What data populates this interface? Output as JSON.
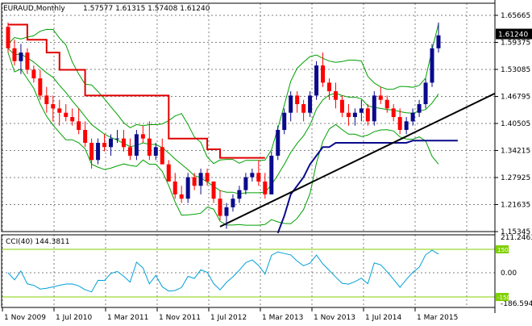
{
  "header": {
    "symbol_text": "EURAUD,Monthly",
    "ohlc_text": "1.57577 1.61315 1.57408 1.61240"
  },
  "price_panel": {
    "price_ticks": [
      "1.65665",
      "1.59375",
      "1.53085",
      "1.46795",
      "1.40505",
      "1.34215",
      "1.27925",
      "1.21635",
      "1.15345"
    ],
    "current_price_label": "1.61240",
    "colors": {
      "up": "#0a0a8c",
      "down": "#ff0000",
      "bands": "#00a000",
      "stop_red": "#e00000",
      "stop_blue": "#0a0a8c",
      "trendline": "#000000"
    }
  },
  "cci_panel": {
    "label": "CCI(40) 144.3811",
    "ticks": [
      "211.2463",
      "0.00",
      "-186.5947"
    ],
    "level_labels": [
      "150",
      "-150"
    ],
    "colors": {
      "line": "#00a0d8",
      "levels": "#80d000"
    }
  },
  "time_axis": {
    "labels": [
      "1 Nov 2009",
      "1 Jul 2010",
      "1 Mar 2011",
      "1 Nov 2011",
      "1 Jul 2012",
      "1 Mar 2013",
      "1 Nov 2013",
      "1 Jul 2014",
      "1 Mar 2015"
    ]
  },
  "chart_data": {
    "type": "candlestick",
    "instrument": "EURAUD",
    "timeframe": "Monthly",
    "period": [
      "2009-09",
      "2015-07"
    ],
    "y_range": [
      1.15345,
      1.65665
    ],
    "candles": [
      [
        1.63,
        1.64,
        1.57,
        1.58
      ],
      [
        1.58,
        1.6,
        1.54,
        1.55
      ],
      [
        1.55,
        1.59,
        1.52,
        1.57
      ],
      [
        1.57,
        1.58,
        1.52,
        1.53
      ],
      [
        1.53,
        1.54,
        1.5,
        1.51
      ],
      [
        1.51,
        1.53,
        1.46,
        1.47
      ],
      [
        1.47,
        1.49,
        1.43,
        1.45
      ],
      [
        1.45,
        1.47,
        1.41,
        1.44
      ],
      [
        1.44,
        1.46,
        1.4,
        1.43
      ],
      [
        1.43,
        1.45,
        1.41,
        1.42
      ],
      [
        1.42,
        1.44,
        1.4,
        1.41
      ],
      [
        1.41,
        1.44,
        1.38,
        1.39
      ],
      [
        1.39,
        1.41,
        1.35,
        1.36
      ],
      [
        1.36,
        1.37,
        1.3,
        1.32
      ],
      [
        1.32,
        1.37,
        1.31,
        1.36
      ],
      [
        1.36,
        1.38,
        1.34,
        1.35
      ],
      [
        1.35,
        1.38,
        1.33,
        1.37
      ],
      [
        1.37,
        1.39,
        1.36,
        1.37
      ],
      [
        1.37,
        1.39,
        1.34,
        1.35
      ],
      [
        1.35,
        1.37,
        1.32,
        1.33
      ],
      [
        1.33,
        1.39,
        1.32,
        1.38
      ],
      [
        1.38,
        1.4,
        1.36,
        1.37
      ],
      [
        1.37,
        1.41,
        1.32,
        1.33
      ],
      [
        1.33,
        1.36,
        1.32,
        1.35
      ],
      [
        1.35,
        1.37,
        1.31,
        1.31
      ],
      [
        1.31,
        1.32,
        1.27,
        1.27
      ],
      [
        1.27,
        1.29,
        1.23,
        1.24
      ],
      [
        1.24,
        1.26,
        1.22,
        1.23
      ],
      [
        1.23,
        1.29,
        1.22,
        1.28
      ],
      [
        1.28,
        1.29,
        1.25,
        1.26
      ],
      [
        1.26,
        1.3,
        1.24,
        1.29
      ],
      [
        1.29,
        1.3,
        1.26,
        1.27
      ],
      [
        1.27,
        1.27,
        1.22,
        1.23
      ],
      [
        1.23,
        1.25,
        1.18,
        1.19
      ],
      [
        1.19,
        1.22,
        1.16,
        1.21
      ],
      [
        1.21,
        1.24,
        1.2,
        1.23
      ],
      [
        1.23,
        1.26,
        1.22,
        1.25
      ],
      [
        1.25,
        1.29,
        1.24,
        1.28
      ],
      [
        1.28,
        1.3,
        1.27,
        1.29
      ],
      [
        1.29,
        1.32,
        1.26,
        1.27
      ],
      [
        1.27,
        1.29,
        1.23,
        1.24
      ],
      [
        1.24,
        1.34,
        1.24,
        1.33
      ],
      [
        1.33,
        1.4,
        1.32,
        1.39
      ],
      [
        1.39,
        1.44,
        1.38,
        1.43
      ],
      [
        1.43,
        1.48,
        1.41,
        1.47
      ],
      [
        1.47,
        1.48,
        1.43,
        1.45
      ],
      [
        1.45,
        1.46,
        1.41,
        1.43
      ],
      [
        1.43,
        1.48,
        1.42,
        1.47
      ],
      [
        1.47,
        1.55,
        1.46,
        1.54
      ],
      [
        1.54,
        1.57,
        1.49,
        1.5
      ],
      [
        1.5,
        1.51,
        1.46,
        1.48
      ],
      [
        1.48,
        1.5,
        1.44,
        1.46
      ],
      [
        1.46,
        1.47,
        1.42,
        1.43
      ],
      [
        1.43,
        1.45,
        1.4,
        1.42
      ],
      [
        1.42,
        1.44,
        1.4,
        1.43
      ],
      [
        1.43,
        1.46,
        1.41,
        1.44
      ],
      [
        1.44,
        1.45,
        1.4,
        1.41
      ],
      [
        1.41,
        1.48,
        1.4,
        1.47
      ],
      [
        1.47,
        1.49,
        1.45,
        1.46
      ],
      [
        1.46,
        1.47,
        1.43,
        1.44
      ],
      [
        1.44,
        1.45,
        1.41,
        1.42
      ],
      [
        1.42,
        1.44,
        1.38,
        1.39
      ],
      [
        1.39,
        1.42,
        1.38,
        1.41
      ],
      [
        1.41,
        1.44,
        1.4,
        1.43
      ],
      [
        1.43,
        1.46,
        1.42,
        1.45
      ],
      [
        1.45,
        1.51,
        1.44,
        1.5
      ],
      [
        1.5,
        1.59,
        1.49,
        1.58
      ],
      [
        1.58,
        1.64,
        1.57,
        1.61
      ]
    ]
  }
}
